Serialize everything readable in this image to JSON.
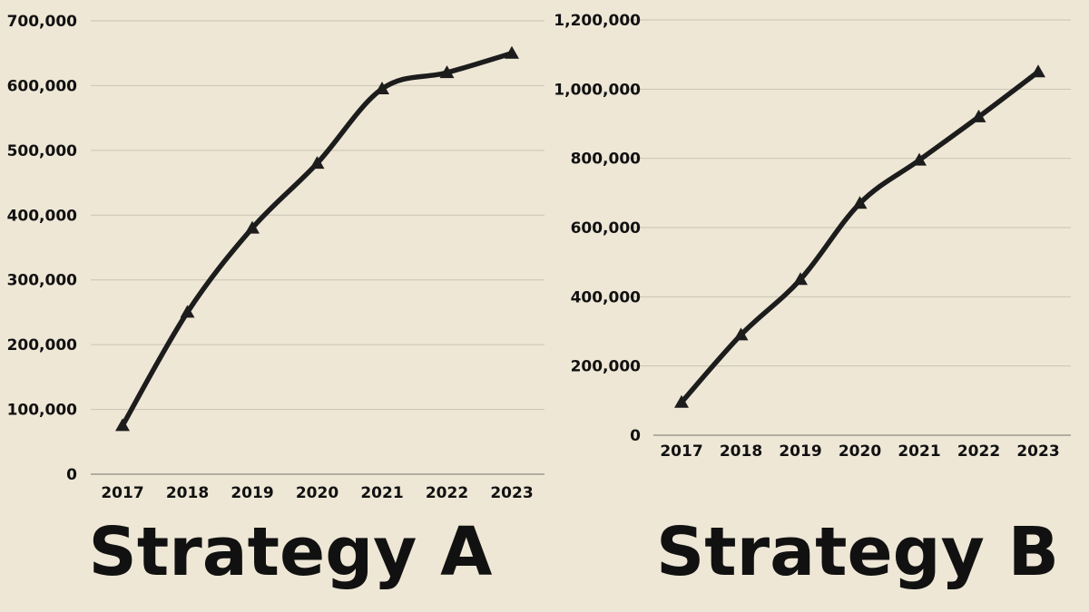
{
  "chart_data": [
    {
      "type": "line",
      "title": "Strategy A",
      "categories": [
        "2017",
        "2018",
        "2019",
        "2020",
        "2021",
        "2022",
        "2023"
      ],
      "series": [
        {
          "values": [
            75000,
            250000,
            380000,
            480000,
            595000,
            620000,
            650000
          ]
        }
      ],
      "ylim": [
        0,
        700000
      ],
      "y_ticks": [
        "0",
        "100,000",
        "200,000",
        "300,000",
        "400,000",
        "500,000",
        "600,000",
        "700,000"
      ],
      "marker": "triangle",
      "grid": true,
      "line_color": "#1C1C1C",
      "grid_color": "#C9C3B3"
    },
    {
      "type": "line",
      "title": "Strategy B",
      "categories": [
        "2017",
        "2018",
        "2019",
        "2020",
        "2021",
        "2022",
        "2023"
      ],
      "series": [
        {
          "values": [
            95000,
            290000,
            450000,
            670000,
            795000,
            920000,
            1050000
          ]
        }
      ],
      "ylim": [
        0,
        1200000
      ],
      "y_ticks": [
        "0",
        "200,000",
        "400,000",
        "600,000",
        "800,000",
        "1,000,000",
        "1,200,000"
      ],
      "marker": "triangle",
      "grid": true,
      "line_color": "#1C1C1C",
      "grid_color": "#C9C3B3"
    }
  ],
  "colors": {
    "background": "#EEE7D6",
    "text": "#111111"
  }
}
